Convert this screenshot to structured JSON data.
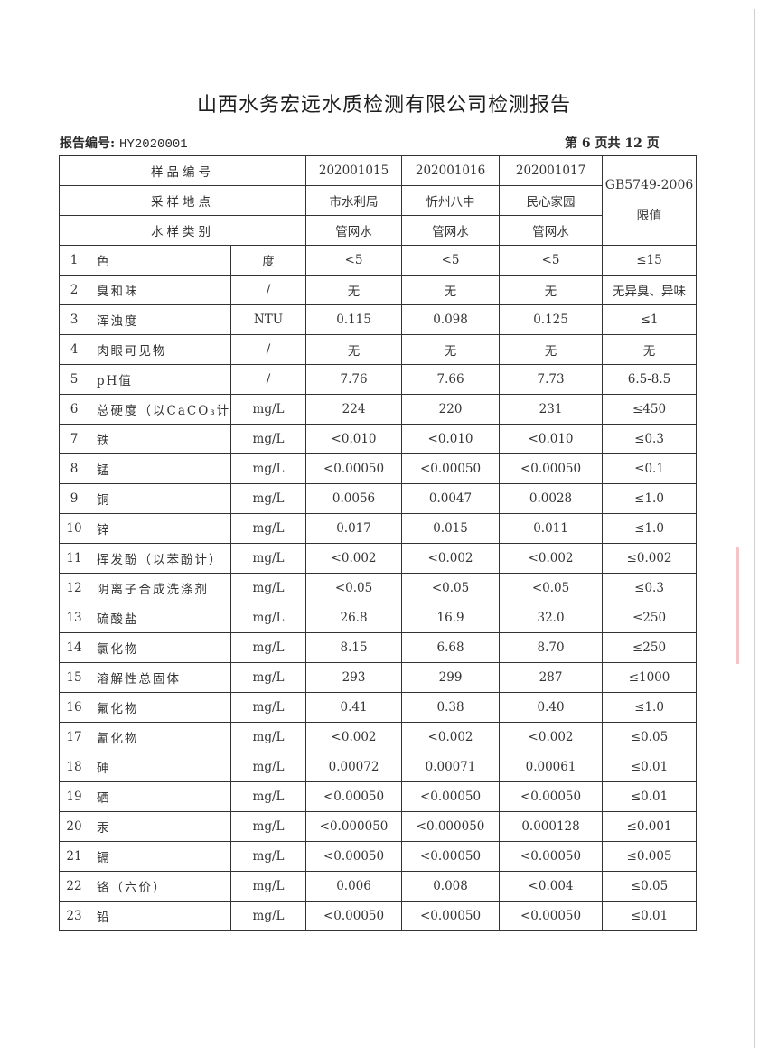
{
  "title": "山西水务宏远水质检测有限公司检测报告",
  "report_no_label": "报告编号:",
  "report_no": "HY2020001",
  "page_info": "第 6 页共 12 页",
  "header": {
    "sample_no_label": "样品编号",
    "location_label": "采样地点",
    "type_label": "水样类别",
    "standard": "GB5749-2006 限值",
    "samples": [
      {
        "no": "202001015",
        "location": "市水利局",
        "type": "管网水"
      },
      {
        "no": "202001016",
        "location": "忻州八中",
        "type": "管网水"
      },
      {
        "no": "202001017",
        "location": "民心家园",
        "type": "管网水"
      }
    ]
  },
  "rows": [
    {
      "n": "1",
      "item": "色",
      "unit": "度",
      "v": [
        "<5",
        "<5",
        "<5"
      ],
      "limit": "≤15"
    },
    {
      "n": "2",
      "item": "臭和味",
      "unit": "/",
      "v": [
        "无",
        "无",
        "无"
      ],
      "limit": "无异臭、异味"
    },
    {
      "n": "3",
      "item": "浑浊度",
      "unit": "NTU",
      "v": [
        "0.115",
        "0.098",
        "0.125"
      ],
      "limit": "≤1"
    },
    {
      "n": "4",
      "item": "肉眼可见物",
      "unit": "/",
      "v": [
        "无",
        "无",
        "无"
      ],
      "limit": "无"
    },
    {
      "n": "5",
      "item": "pH值",
      "unit": "/",
      "v": [
        "7.76",
        "7.66",
        "7.73"
      ],
      "limit": "6.5-8.5"
    },
    {
      "n": "6",
      "item": "总硬度（以CaCO₃计）",
      "unit": "mg/L",
      "v": [
        "224",
        "220",
        "231"
      ],
      "limit": "≤450"
    },
    {
      "n": "7",
      "item": "铁",
      "unit": "mg/L",
      "v": [
        "<0.010",
        "<0.010",
        "<0.010"
      ],
      "limit": "≤0.3"
    },
    {
      "n": "8",
      "item": "锰",
      "unit": "mg/L",
      "v": [
        "<0.00050",
        "<0.00050",
        "<0.00050"
      ],
      "limit": "≤0.1"
    },
    {
      "n": "9",
      "item": "铜",
      "unit": "mg/L",
      "v": [
        "0.0056",
        "0.0047",
        "0.0028"
      ],
      "limit": "≤1.0"
    },
    {
      "n": "10",
      "item": "锌",
      "unit": "mg/L",
      "v": [
        "0.017",
        "0.015",
        "0.011"
      ],
      "limit": "≤1.0"
    },
    {
      "n": "11",
      "item": "挥发酚（以苯酚计）",
      "unit": "mg/L",
      "v": [
        "<0.002",
        "<0.002",
        "<0.002"
      ],
      "limit": "≤0.002"
    },
    {
      "n": "12",
      "item": "阴离子合成洗涤剂",
      "unit": "mg/L",
      "v": [
        "<0.05",
        "<0.05",
        "<0.05"
      ],
      "limit": "≤0.3"
    },
    {
      "n": "13",
      "item": "硫酸盐",
      "unit": "mg/L",
      "v": [
        "26.8",
        "16.9",
        "32.0"
      ],
      "limit": "≤250"
    },
    {
      "n": "14",
      "item": "氯化物",
      "unit": "mg/L",
      "v": [
        "8.15",
        "6.68",
        "8.70"
      ],
      "limit": "≤250"
    },
    {
      "n": "15",
      "item": "溶解性总固体",
      "unit": "mg/L",
      "v": [
        "293",
        "299",
        "287"
      ],
      "limit": "≤1000"
    },
    {
      "n": "16",
      "item": "氟化物",
      "unit": "mg/L",
      "v": [
        "0.41",
        "0.38",
        "0.40"
      ],
      "limit": "≤1.0"
    },
    {
      "n": "17",
      "item": "氰化物",
      "unit": "mg/L",
      "v": [
        "<0.002",
        "<0.002",
        "<0.002"
      ],
      "limit": "≤0.05"
    },
    {
      "n": "18",
      "item": "砷",
      "unit": "mg/L",
      "v": [
        "0.00072",
        "0.00071",
        "0.00061"
      ],
      "limit": "≤0.01"
    },
    {
      "n": "19",
      "item": "硒",
      "unit": "mg/L",
      "v": [
        "<0.00050",
        "<0.00050",
        "<0.00050"
      ],
      "limit": "≤0.01"
    },
    {
      "n": "20",
      "item": "汞",
      "unit": "mg/L",
      "v": [
        "<0.000050",
        "<0.000050",
        "0.000128"
      ],
      "limit": "≤0.001"
    },
    {
      "n": "21",
      "item": "镉",
      "unit": "mg/L",
      "v": [
        "<0.00050",
        "<0.00050",
        "<0.00050"
      ],
      "limit": "≤0.005"
    },
    {
      "n": "22",
      "item": "铬（六价）",
      "unit": "mg/L",
      "v": [
        "0.006",
        "0.008",
        "<0.004"
      ],
      "limit": "≤0.05"
    },
    {
      "n": "23",
      "item": "铅",
      "unit": "mg/L",
      "v": [
        "<0.00050",
        "<0.00050",
        "<0.00050"
      ],
      "limit": "≤0.01"
    }
  ]
}
